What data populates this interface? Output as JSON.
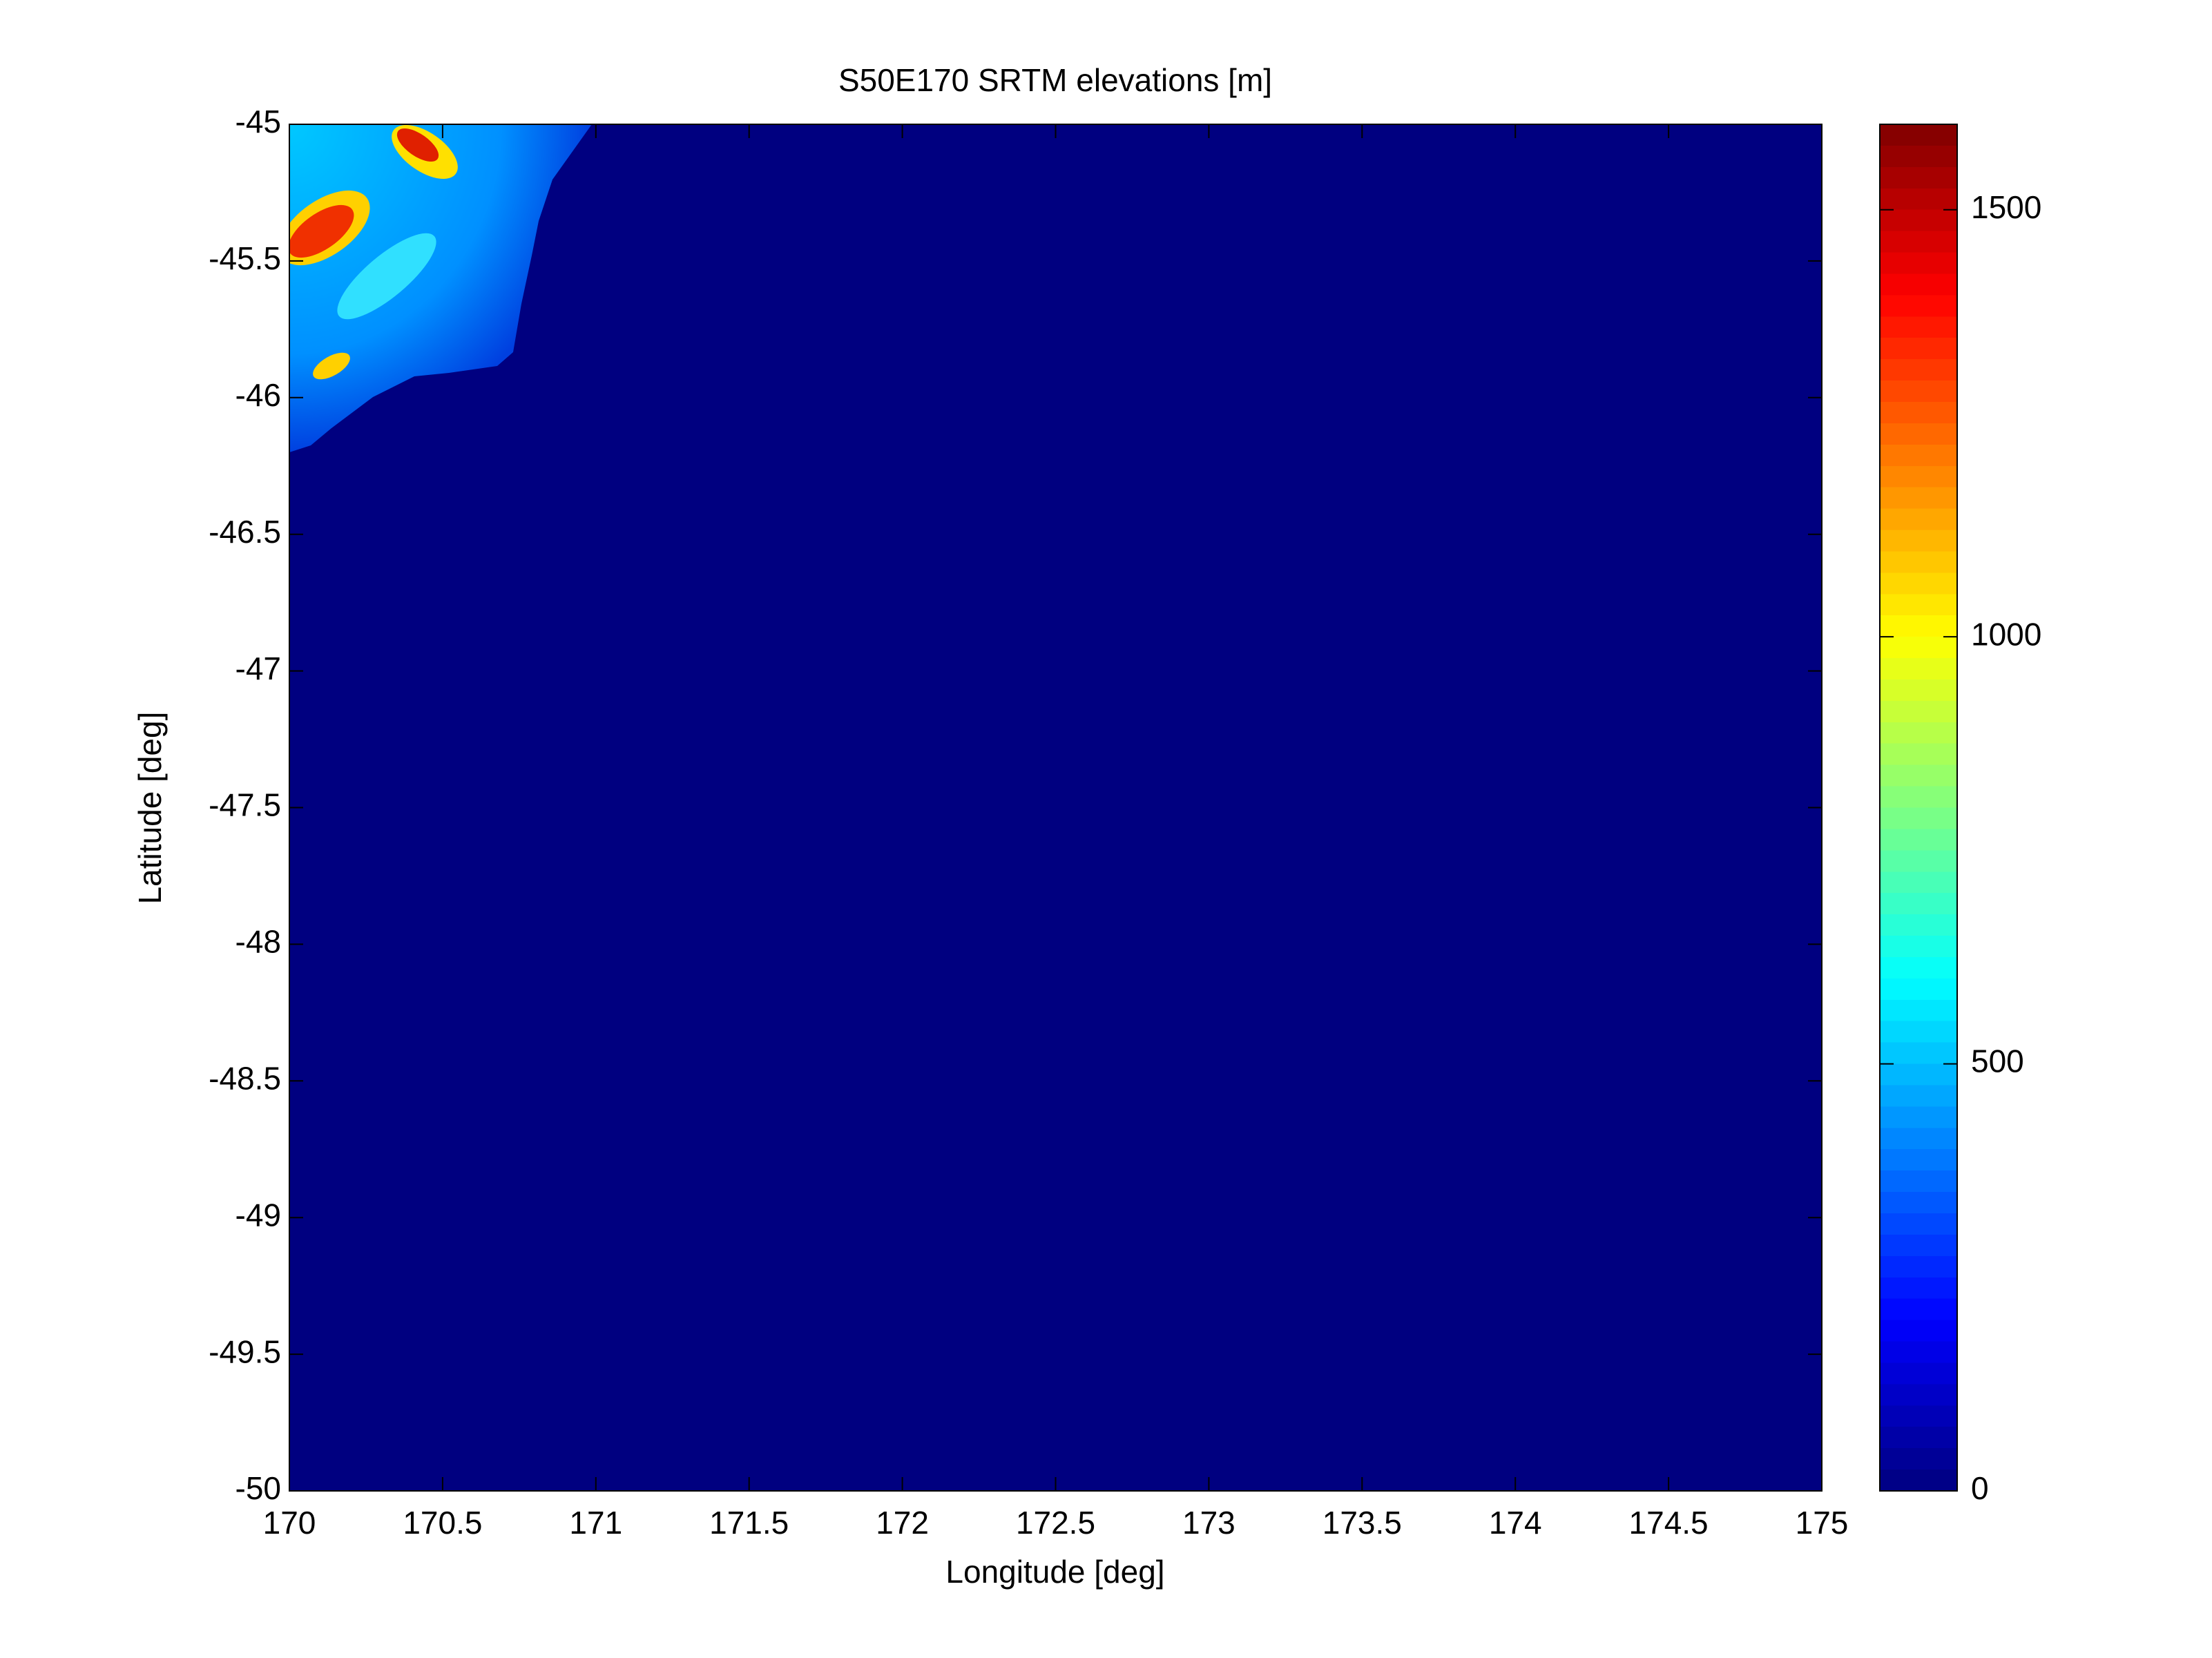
{
  "chart_data": {
    "type": "heatmap",
    "title": "S50E170 SRTM elevations [m]",
    "xlabel": "Longitude [deg]",
    "ylabel": "Latitude [deg]",
    "xlim": [
      170,
      175
    ],
    "xticks": [
      170,
      170.5,
      171,
      171.5,
      172,
      172.5,
      173,
      173.5,
      174,
      174.5,
      175
    ],
    "ylim": [
      -50,
      -45
    ],
    "yticks": [
      -45,
      -45.5,
      -46,
      -46.5,
      -47,
      -47.5,
      -48,
      -48.5,
      -49,
      -49.5,
      -50
    ],
    "colormap": "jet",
    "clim": [
      0,
      1600
    ],
    "cticks": [
      0,
      500,
      1000,
      1500
    ]
  }
}
